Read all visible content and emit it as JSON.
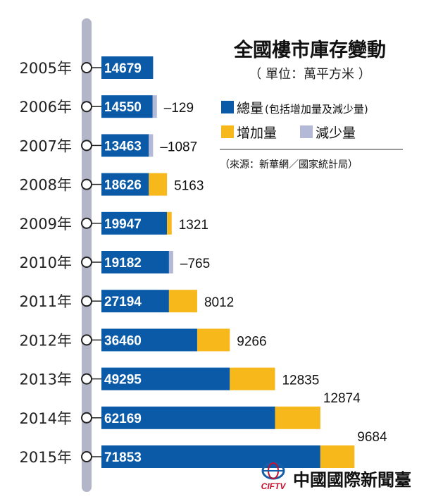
{
  "colors": {
    "total": "#0a5aa8",
    "increase": "#f7b81c",
    "decrease": "#b3b9d6",
    "timeline": "#b3b6c8",
    "brand_red": "#c8102e",
    "brand_blue": "#1560a8"
  },
  "legend": {
    "title": "全國樓市庫存變動",
    "unit": "（ 單位：萬平方米 ）",
    "total_label": "總量",
    "total_note": "(包括增加量及減少量)",
    "increase_label": "增加量",
    "decrease_label": "減少量",
    "source": "（來源：新華網／國家統計局）"
  },
  "brand": {
    "name": "中國國際新聞臺",
    "abbr": "CIFTV",
    "logo_icon": "globe-logo-icon"
  },
  "chart_data": {
    "type": "bar",
    "orientation": "horizontal",
    "stacked": true,
    "title": "全國樓市庫存變動",
    "unit": "萬平方米",
    "categories": [
      "2005年",
      "2006年",
      "2007年",
      "2008年",
      "2009年",
      "2010年",
      "2011年",
      "2012年",
      "2013年",
      "2014年",
      "2015年"
    ],
    "series": [
      {
        "name": "總量",
        "values": [
          14679,
          14550,
          13463,
          18626,
          19947,
          19182,
          27194,
          36460,
          49295,
          62169,
          71853
        ]
      },
      {
        "name": "增加量",
        "values": [
          0,
          0,
          0,
          5163,
          1321,
          0,
          8012,
          9266,
          12835,
          12874,
          9684
        ]
      },
      {
        "name": "減少量",
        "values": [
          0,
          129,
          1087,
          0,
          0,
          765,
          0,
          0,
          0,
          0,
          0
        ]
      }
    ],
    "change_labels": [
      "",
      "–129",
      "–1087",
      "5163",
      "1321",
      "–765",
      "8012",
      "9266",
      "12835",
      "12874",
      "9684"
    ],
    "grid": false,
    "legend_position": "top-right"
  }
}
